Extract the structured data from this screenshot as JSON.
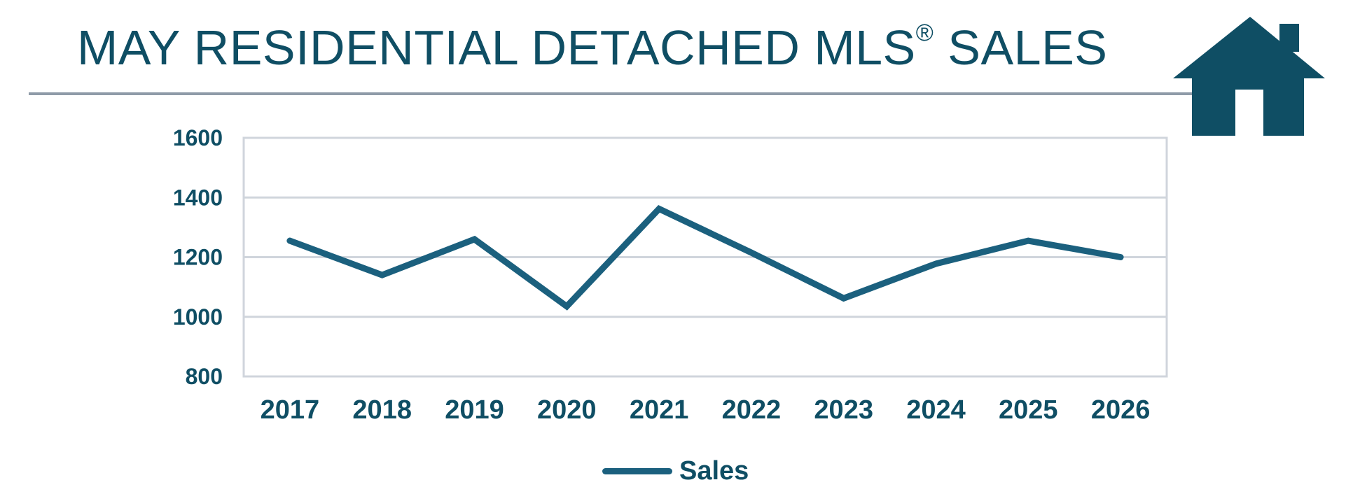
{
  "title": {
    "main": "MAY RESIDENTIAL DETACHED MLS",
    "registered": "®",
    "tail": " SALES"
  },
  "colors": {
    "primary": "#0f4e64",
    "line": "#1b607e",
    "grid": "#d0d5dc",
    "rule": "#8f9ba8"
  },
  "icons": {
    "house": "house-icon"
  },
  "chart_data": {
    "type": "line",
    "title": "MAY RESIDENTIAL DETACHED MLS® SALES",
    "xlabel": "",
    "ylabel": "",
    "categories": [
      "2017",
      "2018",
      "2019",
      "2020",
      "2021",
      "2022",
      "2023",
      "2024",
      "2025",
      "2026"
    ],
    "series": [
      {
        "name": "Sales",
        "values": [
          1255,
          1140,
          1260,
          1035,
          1362,
          1215,
          1062,
          1178,
          1255,
          1200
        ]
      }
    ],
    "ylim": [
      800,
      1600
    ],
    "yticks": [
      "800",
      "1000",
      "1200",
      "1400",
      "1600"
    ],
    "grid": true,
    "legend": "bottom"
  },
  "legend": {
    "label": "Sales"
  }
}
